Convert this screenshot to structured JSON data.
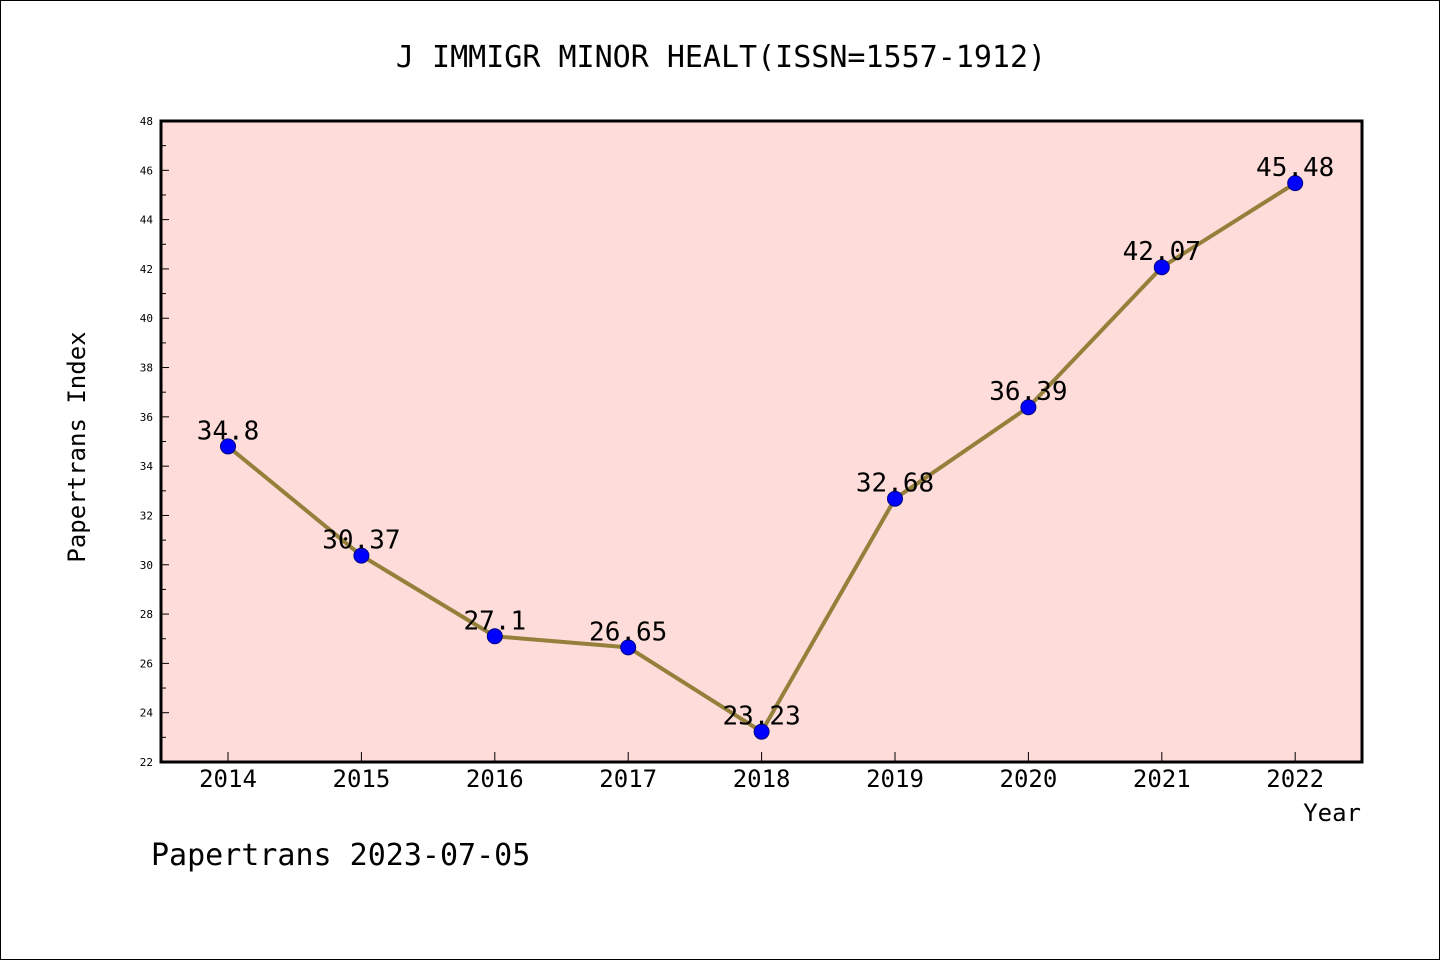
{
  "chart_data": {
    "type": "line",
    "title": "J IMMIGR MINOR HEALT(ISSN=1557-1912)",
    "xlabel": "Year",
    "ylabel": "Papertrans Index",
    "x": [
      "2014",
      "2015",
      "2016",
      "2017",
      "2018",
      "2019",
      "2020",
      "2021",
      "2022"
    ],
    "series": [
      {
        "values": [
          34.8,
          30.37,
          27.1,
          26.65,
          23.23,
          32.68,
          36.39,
          42.07,
          45.48
        ],
        "labels": [
          "34.8",
          "30.37",
          "27.1",
          "26.65",
          "23.23",
          "32.68",
          "36.39",
          "42.07",
          "45.48"
        ]
      }
    ],
    "ylim": [
      22,
      48
    ],
    "yticks": [
      22,
      24,
      26,
      28,
      30,
      32,
      34,
      36,
      38,
      40,
      42,
      44,
      46,
      48
    ],
    "grid": false,
    "colors": {
      "plot_background": "#fddcd9",
      "line": "#94803a",
      "marker": "#0000ff",
      "marker_edge": "#000080"
    }
  },
  "footer": "Papertrans 2023-07-05"
}
